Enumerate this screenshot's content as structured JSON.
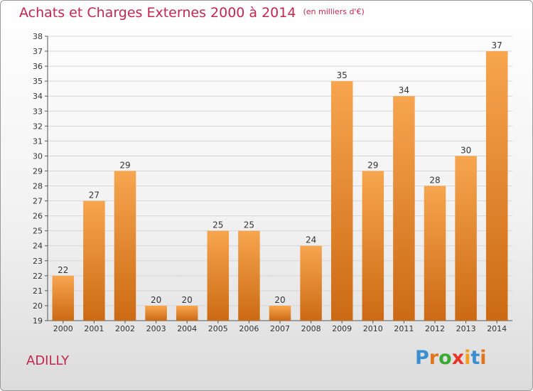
{
  "header": {
    "title": "Achats et Charges Externes 2000 à 2014",
    "subtitle": "(en milliers d'€)"
  },
  "commune": "ADILLY",
  "logo": {
    "text": "Proxiti",
    "letter_colors": [
      "#3a8fd0",
      "#e0761e",
      "#3aaa35",
      "#e8352a",
      "#f0a01e",
      "#3a8fd0",
      "#e0761e"
    ]
  },
  "colors": {
    "bar_light": "#f7a54f",
    "bar_dark": "#cc6a14",
    "title": "#c2274f",
    "grid": "#d6d6d6"
  },
  "chart_data": {
    "type": "bar",
    "categories": [
      "2000",
      "2001",
      "2002",
      "2003",
      "2004",
      "2005",
      "2006",
      "2007",
      "2008",
      "2009",
      "2010",
      "2011",
      "2012",
      "2013",
      "2014"
    ],
    "values": [
      22,
      27,
      29,
      20,
      20,
      25,
      25,
      20,
      24,
      35,
      29,
      34,
      28,
      30,
      37
    ],
    "ylim": [
      19,
      38
    ],
    "yticks": [
      19,
      20,
      21,
      22,
      23,
      24,
      25,
      26,
      27,
      28,
      29,
      30,
      31,
      32,
      33,
      34,
      35,
      36,
      37,
      38
    ],
    "grid": true,
    "data_labels": true,
    "title": "Achats et Charges Externes 2000 à 2014",
    "ylabel": "",
    "xlabel": ""
  }
}
